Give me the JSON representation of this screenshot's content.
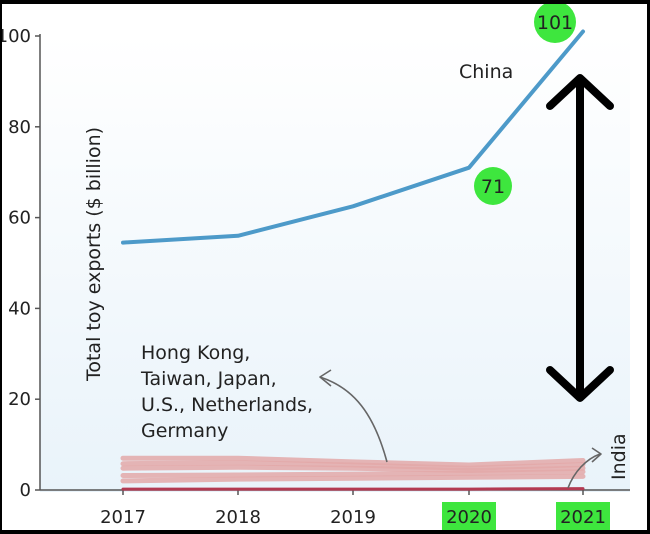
{
  "chart_data": {
    "type": "line",
    "title": "",
    "xlabel": "",
    "ylabel": "Total toy exports ($ billion)",
    "categories": [
      "2017",
      "2018",
      "2019",
      "2020",
      "2021"
    ],
    "ylim": [
      0,
      100
    ],
    "yticks": [
      "0",
      "20",
      "40",
      "60",
      "80",
      "100"
    ],
    "highlighted_categories": [
      "2020",
      "2021"
    ],
    "highlight_color": "#3ee63e",
    "series": [
      {
        "name": "China",
        "color": "#4d9ac9",
        "values": [
          54.5,
          56,
          62.5,
          71,
          101
        ]
      },
      {
        "name": "",
        "color": "#e3a8a8",
        "values": [
          7,
          7,
          6.2,
          5.5,
          6.5
        ]
      },
      {
        "name": "",
        "color": "#e3a8a8",
        "values": [
          5.8,
          6,
          5.5,
          4.8,
          5.6
        ]
      },
      {
        "name": "",
        "color": "#e3a8a8",
        "values": [
          4.8,
          5,
          4.8,
          4.3,
          4.8
        ]
      },
      {
        "name": "",
        "color": "#e3a8a8",
        "values": [
          3.2,
          3.3,
          3.5,
          3.7,
          4
        ]
      },
      {
        "name": "",
        "color": "#e3a8a8",
        "values": [
          2,
          2.4,
          2.6,
          2.8,
          3
        ]
      },
      {
        "name": "India",
        "color": "#b33a52",
        "values": [
          0.2,
          0.2,
          0.2,
          0.2,
          0.3
        ]
      }
    ],
    "annotations": {
      "china_label": "China",
      "india_label": "India",
      "group_label_lines": [
        "Hong Kong,",
        "Taiwan, Japan,",
        "U.S., Netherlands,",
        "Germany"
      ],
      "value_2020": "71",
      "value_2021": "101",
      "bubble_color": "#3ee63e",
      "arrow_color": "#000000"
    }
  }
}
